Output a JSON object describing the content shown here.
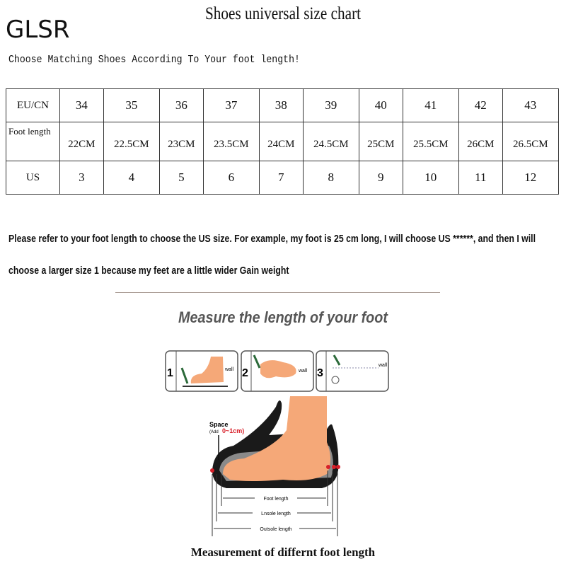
{
  "brand": "GLSR",
  "title": "Shoes universal size chart",
  "subtitle": "Choose Matching Shoes According To Your foot length!",
  "size_table": {
    "rows": [
      {
        "label": "EU/CN",
        "values": [
          "34",
          "35",
          "36",
          "37",
          "38",
          "39",
          "40",
          "41",
          "42",
          "43"
        ]
      },
      {
        "label": "Foot length",
        "values": [
          "22CM",
          "22.5CM",
          "23CM",
          "23.5CM",
          "24CM",
          "24.5CM",
          "25CM",
          "25.5CM",
          "26CM",
          "26.5CM"
        ]
      },
      {
        "label": "US",
        "values": [
          "3",
          "4",
          "5",
          "6",
          "7",
          "8",
          "9",
          "10",
          "11",
          "12"
        ]
      }
    ]
  },
  "instructions": {
    "line1": "Please refer to your foot length to choose the US size. For example, my foot is 25 cm long, I will choose US ******, and then I will",
    "line2": "choose a larger size 1 because my feet are a little wider Gain weight"
  },
  "measure_heading": "Measure the length of your foot",
  "steps": [
    {
      "number": "1",
      "wall": "wall"
    },
    {
      "number": "2",
      "wall": "wall"
    },
    {
      "number": "3",
      "wall": "wall"
    }
  ],
  "diagram": {
    "space_label": "Space",
    "add_label": "(Add",
    "space_range": "0~1cm)",
    "foot_length": "Foot length",
    "insole_length": "Lnsole length",
    "outsole_length": "Outsole length"
  },
  "caption": "Measurement of differnt foot length",
  "colors": {
    "skin": "#f5a878",
    "accent_red": "#d8202a",
    "heading_gray": "#555555"
  }
}
